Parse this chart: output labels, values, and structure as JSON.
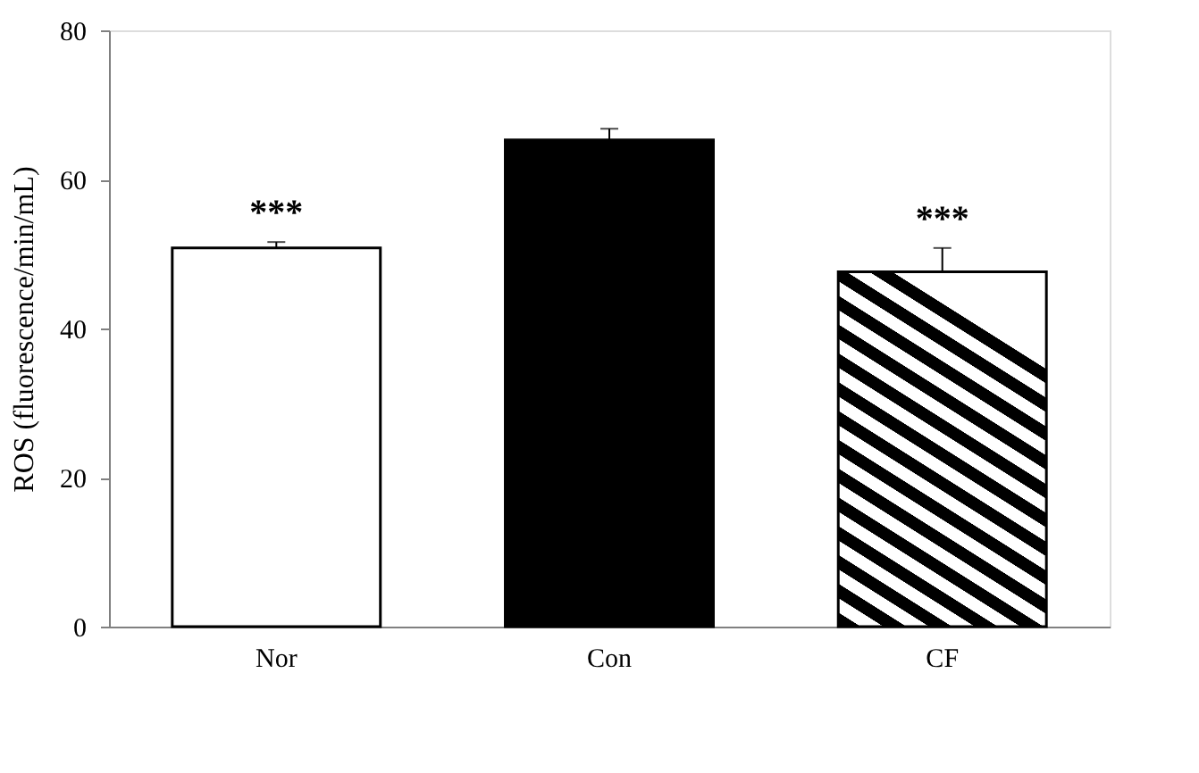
{
  "chart_data": {
    "type": "bar",
    "ylabel": "ROS (fluorescence/min/mL)",
    "categories": [
      "Nor",
      "Con",
      "CF"
    ],
    "values": [
      50.8,
      65.3,
      47.6
    ],
    "colors": [
      "#ffffff",
      "#000000",
      "#000000"
    ],
    "errors": [
      [
        50.8,
        51.6
      ],
      [
        65.3,
        66.8
      ],
      [
        47.6,
        50.8
      ]
    ],
    "value_labels": [
      "***",
      null,
      "***"
    ],
    "ylim": [
      0,
      80
    ],
    "yticks": [
      0,
      20,
      40,
      60,
      80
    ],
    "grid": false
  }
}
